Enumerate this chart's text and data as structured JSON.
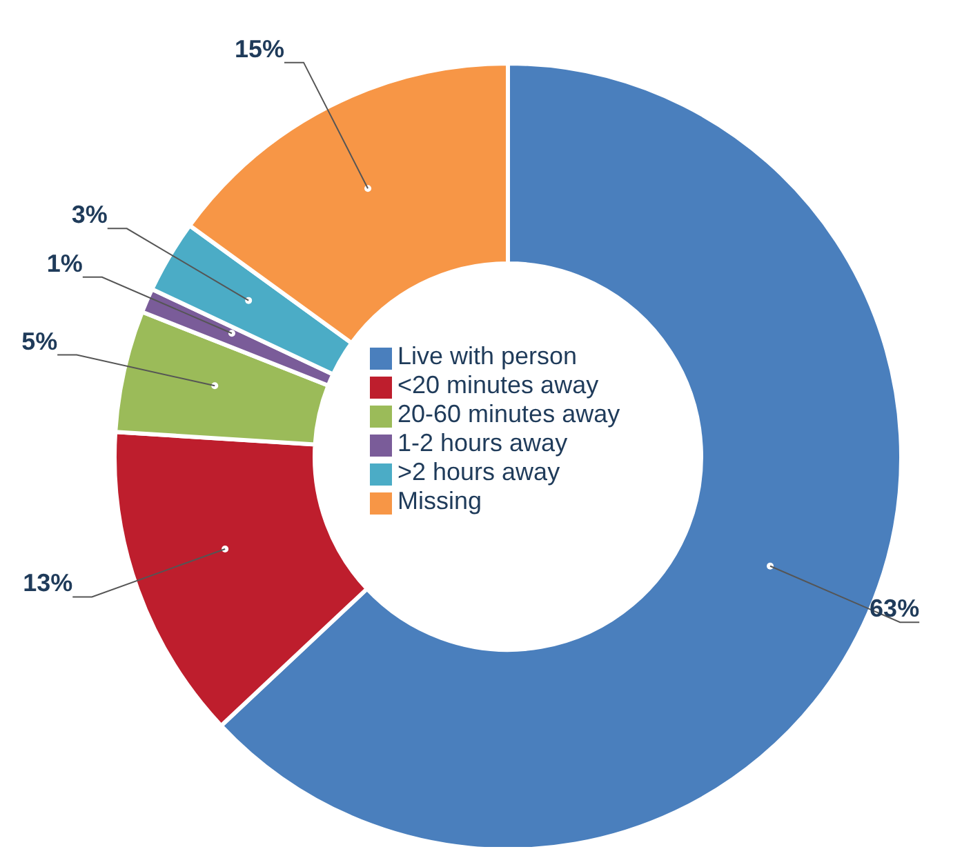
{
  "chart_data": {
    "type": "donut",
    "categories": [
      "Live with person",
      "<20 minutes away",
      "20-60 minutes away",
      "1-2 hours away",
      ">2 hours away",
      "Missing"
    ],
    "values": [
      63,
      13,
      5,
      1,
      3,
      15
    ],
    "colors": [
      "#4a7fbd",
      "#be1e2d",
      "#9bbb59",
      "#7a5c99",
      "#4bacc6",
      "#f79646"
    ],
    "value_labels": [
      "63%",
      "13%",
      "5%",
      "1%",
      "3%",
      "15%"
    ],
    "legend": "center"
  }
}
